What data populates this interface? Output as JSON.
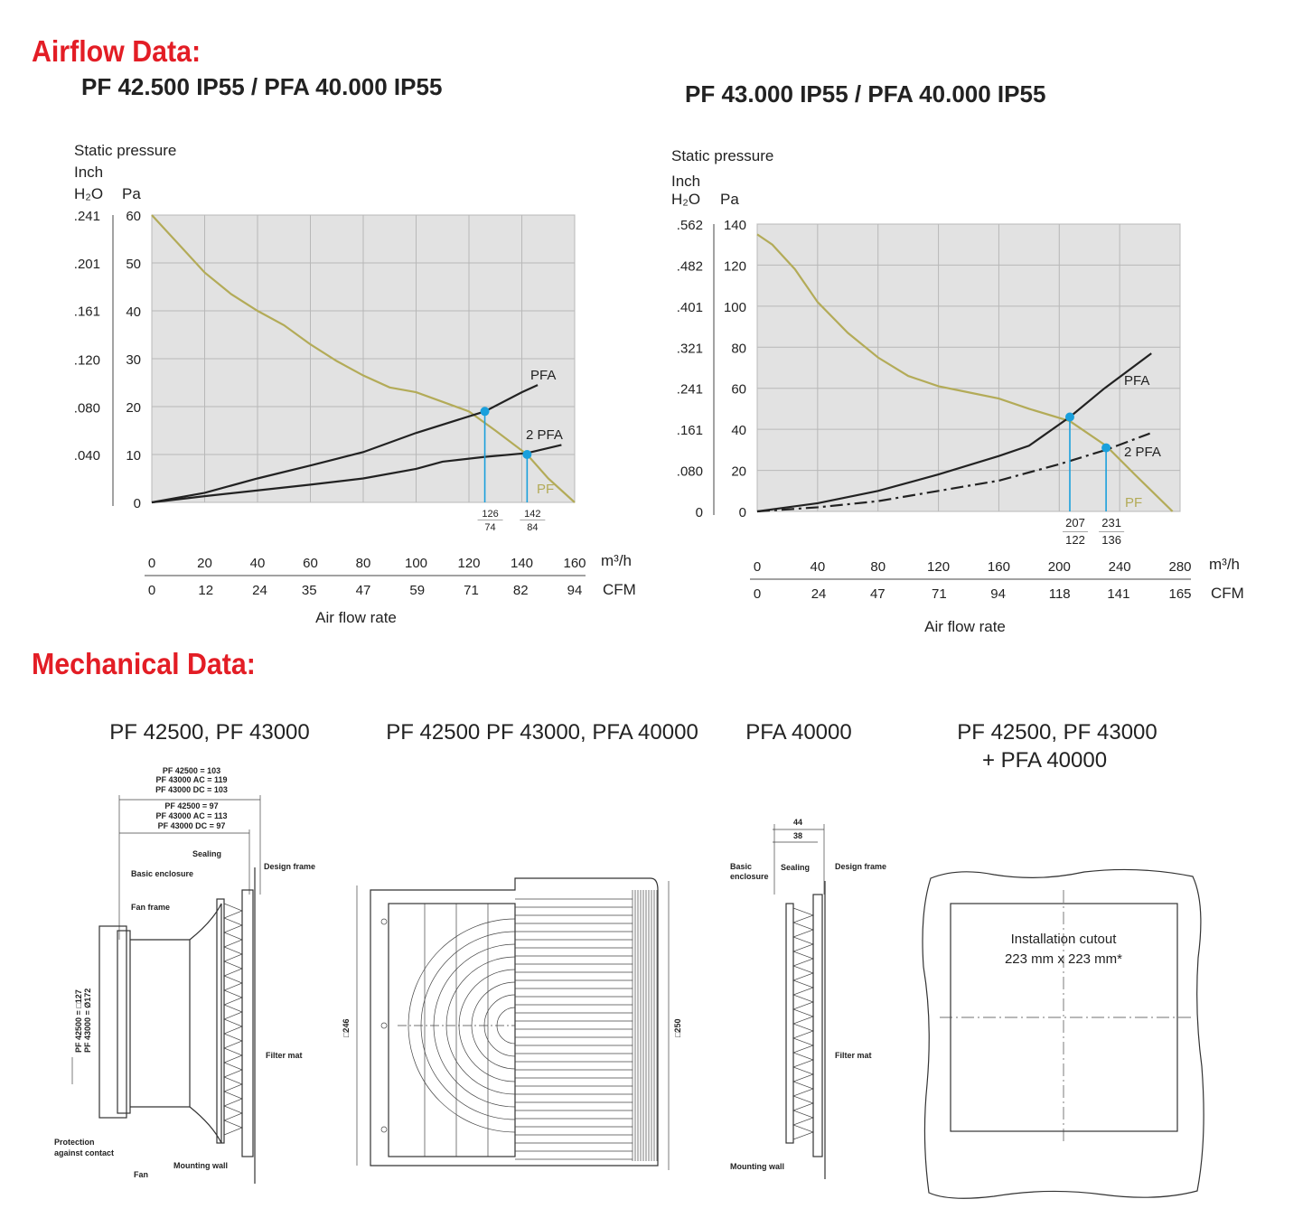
{
  "headings": {
    "airflow": "Airflow Data:",
    "mechanical": "Mechanical Data:"
  },
  "chart_data": [
    {
      "type": "line",
      "title": "PF 42.500 IP55 / PFA 40.000 IP55",
      "y_label": "Static pressure",
      "y2_label": "Inch",
      "y2_unit": "H₂O",
      "y_unit": "Pa",
      "x_unit": "m³/h",
      "x2_unit": "CFM",
      "x_label": "Air flow rate",
      "xlim": [
        0,
        160
      ],
      "xticks": [
        0,
        20,
        40,
        60,
        80,
        100,
        120,
        140,
        160
      ],
      "x2lim": [
        0,
        94
      ],
      "x2ticks": [
        0,
        12,
        24,
        35,
        47,
        59,
        71,
        82,
        94
      ],
      "ylim": [
        0,
        60
      ],
      "yticks": [
        0,
        10,
        20,
        30,
        40,
        50,
        60
      ],
      "y2lim": [
        0,
        0.241
      ],
      "y2ticks": [
        {
          "value": 0.04,
          "label": ".040"
        },
        {
          "value": 0.08,
          "label": ".080"
        },
        {
          "value": 0.12,
          "label": ".120"
        },
        {
          "value": 0.161,
          "label": ".161"
        },
        {
          "value": 0.201,
          "label": ".201"
        },
        {
          "value": 0.241,
          "label": ".241"
        }
      ],
      "grid": true,
      "series": [
        {
          "name": "PF",
          "color": "#b3ab58",
          "dash": "solid",
          "x": [
            0,
            10,
            20,
            30,
            40,
            50,
            60,
            70,
            80,
            90,
            100,
            110,
            120,
            130,
            142,
            150,
            160
          ],
          "y": [
            60,
            54,
            48,
            43.5,
            40,
            37,
            33,
            29.5,
            26.5,
            24,
            23,
            21,
            19,
            15,
            10,
            5,
            0
          ]
        },
        {
          "name": "PFA",
          "color": "#222222",
          "dash": "solid",
          "x": [
            0,
            20,
            40,
            60,
            80,
            100,
            126,
            140,
            146
          ],
          "y": [
            0,
            2,
            5,
            7.7,
            10.5,
            14.5,
            19,
            23,
            24.5
          ]
        },
        {
          "name": "2 PFA",
          "color": "#222222",
          "dash": "solid",
          "x": [
            0,
            20,
            40,
            60,
            80,
            100,
            110,
            126,
            142,
            155
          ],
          "y": [
            0,
            1.3,
            2.5,
            3.7,
            5,
            7,
            8.5,
            9.5,
            10.3,
            12
          ]
        }
      ],
      "points": [
        {
          "x": 126,
          "y": 19,
          "label_top": "126",
          "label_bottom": "74"
        },
        {
          "x": 142,
          "y": 10,
          "label_top": "142",
          "label_bottom": "84"
        }
      ],
      "point_color": "#1aa0dc"
    },
    {
      "type": "line",
      "title": "PF 43.000 IP55 / PFA 40.000 IP55",
      "y_label": "Static pressure",
      "y2_label": "Inch",
      "y2_unit": "H₂O",
      "y_unit": "Pa",
      "x_unit": "m³/h",
      "x2_unit": "CFM",
      "x_label": "Air flow rate",
      "xlim": [
        0,
        280
      ],
      "xticks": [
        0,
        40,
        80,
        120,
        160,
        200,
        240,
        280
      ],
      "x2lim": [
        0,
        165
      ],
      "x2ticks": [
        0,
        24,
        47,
        71,
        94,
        118,
        141,
        165
      ],
      "ylim": [
        0,
        140
      ],
      "yticks": [
        0,
        20,
        40,
        60,
        80,
        100,
        120,
        140
      ],
      "y2lim": [
        0,
        0.562
      ],
      "y2ticks": [
        0,
        {
          "value": 0.08,
          "label": ".080"
        },
        {
          "value": 0.161,
          "label": ".161"
        },
        {
          "value": 0.241,
          "label": ".241"
        },
        {
          "value": 0.321,
          "label": ".321"
        },
        {
          "value": 0.401,
          "label": ".401"
        },
        {
          "value": 0.482,
          "label": ".482"
        },
        {
          "value": 0.562,
          "label": ".562"
        }
      ],
      "grid": true,
      "series": [
        {
          "name": "PF",
          "color": "#b3ab58",
          "dash": "solid",
          "x": [
            0,
            10,
            25,
            40,
            60,
            80,
            100,
            120,
            140,
            160,
            180,
            207,
            231,
            250,
            275
          ],
          "y": [
            135,
            130,
            118,
            102,
            87,
            75,
            66,
            61,
            58,
            55,
            50,
            44,
            32,
            18,
            0
          ]
        },
        {
          "name": "PFA",
          "color": "#222222",
          "dash": "solid",
          "x": [
            0,
            40,
            80,
            120,
            160,
            180,
            207,
            230,
            261
          ],
          "y": [
            0,
            4,
            10,
            18,
            27,
            32,
            46,
            60,
            77
          ]
        },
        {
          "name": "2 PFA",
          "color": "#222222",
          "dash": "dashdot",
          "x": [
            0,
            40,
            80,
            120,
            160,
            200,
            231,
            260
          ],
          "y": [
            0,
            2,
            5,
            10,
            15,
            23,
            30,
            38
          ]
        }
      ],
      "points": [
        {
          "x": 207,
          "y": 46,
          "label_top": "207",
          "label_bottom": "122"
        },
        {
          "x": 231,
          "y": 31,
          "label_top": "231",
          "label_bottom": "136"
        }
      ],
      "point_color": "#1aa0dc"
    }
  ],
  "mechanical": {
    "drawings": [
      {
        "title": [
          "PF 42500, PF 43000"
        ],
        "labels": [
          "PF 42500 = 103",
          "PF 43000 AC = 119",
          "PF 43000 DC = 103",
          "PF 42500 = 97",
          "PF 43000 AC = 113",
          "PF 43000 DC = 97",
          "Sealing",
          "Basic enclosure",
          "Design frame",
          "Fan frame",
          "Filter mat",
          "Protection",
          "against contact",
          "Fan",
          "Mounting wall",
          "PF 42500 = □127",
          "PF 43000 = Ø172"
        ]
      },
      {
        "title": [
          "PF 42500 PF 43000, PFA 40000"
        ],
        "labels": [
          "□246",
          "□250"
        ]
      },
      {
        "title": [
          "PFA 40000"
        ],
        "labels": [
          "44",
          "38",
          "Basic",
          "enclosure",
          "Sealing",
          "Design frame",
          "Filter mat",
          "Mounting wall"
        ]
      },
      {
        "title": [
          "PF 42500, PF 43000",
          "+ PFA 40000"
        ],
        "labels": [
          "Installation cutout",
          "223 mm x 223 mm*"
        ]
      }
    ]
  }
}
